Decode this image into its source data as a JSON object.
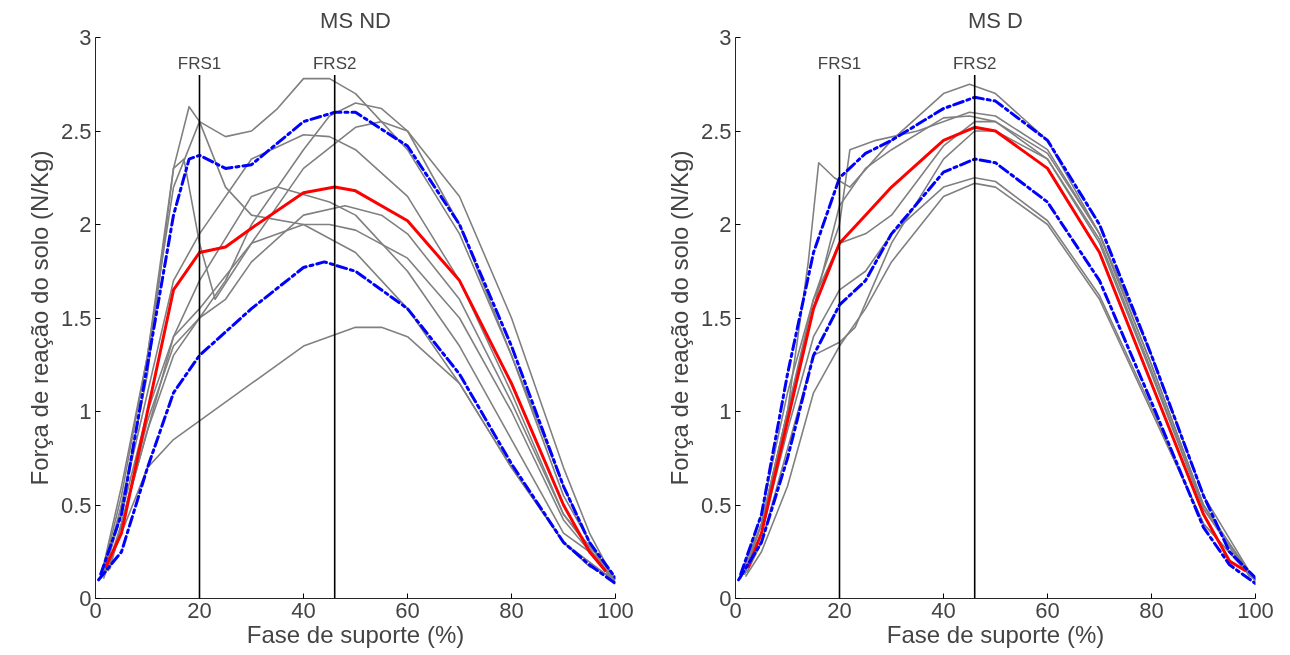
{
  "chart_data": [
    {
      "type": "line",
      "title": "MS ND",
      "xlabel": "Fase de suporte (%)",
      "ylabel": "Força de reação do solo (N/Kg)",
      "xlim": [
        0,
        100
      ],
      "ylim": [
        0,
        3
      ],
      "xticks": [
        0,
        20,
        40,
        60,
        80,
        100
      ],
      "yticks": [
        0,
        0.5,
        1,
        1.5,
        2,
        2.5,
        3
      ],
      "grid": false,
      "ref_lines": [
        {
          "axis": "x",
          "value": 20,
          "label": "FRS1",
          "color": "#000000"
        },
        {
          "axis": "x",
          "value": 46,
          "label": "FRS2",
          "color": "#000000"
        }
      ],
      "series": [
        {
          "color": "#808080",
          "x": [
            1.5,
            5,
            10,
            15,
            18,
            20,
            25,
            30,
            35,
            40,
            45,
            50,
            60,
            70,
            80,
            90,
            95,
            99.5
          ],
          "values": [
            0.13,
            0.5,
            1.2,
            2.3,
            2.63,
            2.55,
            2.47,
            2.5,
            2.62,
            2.78,
            2.78,
            2.7,
            2.4,
            1.95,
            1.3,
            0.6,
            0.3,
            0.11
          ]
        },
        {
          "color": "#808080",
          "x": [
            1,
            5,
            10,
            15,
            20,
            25,
            30,
            40,
            50,
            60,
            70,
            80,
            90,
            100
          ],
          "values": [
            0.11,
            0.6,
            1.3,
            2.2,
            2.55,
            2.2,
            2.05,
            2.0,
            1.85,
            1.55,
            1.15,
            0.7,
            0.3,
            0.09
          ]
        },
        {
          "color": "#808080",
          "x": [
            2,
            5,
            10,
            15,
            20,
            30,
            40,
            50,
            55,
            60,
            70,
            80,
            90,
            95,
            99
          ],
          "values": [
            0.14,
            0.35,
            0.7,
            0.85,
            0.95,
            1.15,
            1.35,
            1.45,
            1.45,
            1.4,
            1.15,
            0.7,
            0.3,
            0.17,
            0.12
          ]
        },
        {
          "color": "#808080",
          "x": [
            1.2,
            5,
            10,
            15,
            17,
            20,
            23,
            30,
            40,
            50,
            55,
            60,
            70,
            80,
            90,
            95,
            99.8
          ],
          "values": [
            0.12,
            0.55,
            1.3,
            2.3,
            2.35,
            1.9,
            1.6,
            1.9,
            2.3,
            2.52,
            2.55,
            2.5,
            2.15,
            1.5,
            0.7,
            0.35,
            0.1
          ]
        },
        {
          "color": "#808080",
          "x": [
            1.8,
            5,
            10,
            15,
            20,
            30,
            40,
            45,
            50,
            60,
            70,
            80,
            90,
            99.3
          ],
          "values": [
            0.13,
            0.5,
            1.1,
            1.7,
            1.95,
            2.35,
            2.48,
            2.47,
            2.4,
            2.15,
            1.7,
            1.1,
            0.45,
            0.11
          ]
        },
        {
          "color": "#808080",
          "x": [
            1.6,
            5,
            10,
            15,
            20,
            30,
            35,
            45,
            50,
            60,
            70,
            80,
            90,
            97
          ],
          "values": [
            0.11,
            0.4,
            0.9,
            1.4,
            1.7,
            2.15,
            2.2,
            2.12,
            2.05,
            1.75,
            1.35,
            0.85,
            0.35,
            0.21
          ]
        },
        {
          "color": "#808080",
          "x": [
            2.8,
            5,
            10,
            15,
            20,
            25,
            30,
            40,
            48,
            55,
            60,
            70,
            80,
            90,
            99.7
          ],
          "values": [
            0.16,
            0.4,
            0.95,
            1.35,
            1.5,
            1.6,
            1.8,
            2.05,
            2.1,
            2.05,
            1.95,
            1.6,
            1.05,
            0.45,
            0.12
          ]
        },
        {
          "color": "#808080",
          "x": [
            1.4,
            5,
            10,
            15,
            20,
            30,
            40,
            45,
            50,
            60,
            70,
            80,
            90,
            99.6
          ],
          "values": [
            0.12,
            0.45,
            1.0,
            1.4,
            1.55,
            1.9,
            2.0,
            2.0,
            1.97,
            1.82,
            1.5,
            1.0,
            0.42,
            0.1
          ]
        },
        {
          "color": "#808080",
          "x": [
            2.5,
            5,
            10,
            15,
            20,
            25,
            30,
            40,
            45,
            50,
            55,
            60,
            70,
            80,
            90,
            98.5
          ],
          "values": [
            0.15,
            0.4,
            0.9,
            1.3,
            1.5,
            1.7,
            2.0,
            2.4,
            2.58,
            2.65,
            2.62,
            2.5,
            2.0,
            1.3,
            0.55,
            0.13
          ]
        },
        {
          "color": "#ff0000",
          "x": [
            2,
            5,
            10,
            15,
            20,
            25,
            30,
            40,
            46,
            50,
            60,
            70,
            80,
            90,
            95,
            98
          ],
          "values": [
            0.17,
            0.35,
            1.0,
            1.65,
            1.85,
            1.88,
            1.98,
            2.17,
            2.2,
            2.18,
            2.02,
            1.7,
            1.15,
            0.5,
            0.25,
            0.15
          ]
        },
        {
          "color": "#0000ff",
          "line_style": "dashed",
          "x": [
            1,
            5,
            10,
            15,
            18,
            20,
            25,
            30,
            40,
            46,
            50,
            60,
            70,
            80,
            90,
            95,
            100
          ],
          "values": [
            0.13,
            0.45,
            1.25,
            2.05,
            2.35,
            2.37,
            2.3,
            2.32,
            2.55,
            2.6,
            2.6,
            2.42,
            2.0,
            1.35,
            0.6,
            0.3,
            0.11
          ]
        },
        {
          "color": "#0000ff",
          "line_style": "dashed",
          "x": [
            0.6,
            5,
            10,
            15,
            20,
            30,
            40,
            44,
            50,
            60,
            70,
            80,
            90,
            95,
            100
          ],
          "values": [
            0.1,
            0.25,
            0.7,
            1.1,
            1.3,
            1.55,
            1.77,
            1.8,
            1.75,
            1.55,
            1.2,
            0.72,
            0.3,
            0.18,
            0.08
          ]
        }
      ]
    },
    {
      "type": "line",
      "title": "MS D",
      "xlabel": "Fase de suporte (%)",
      "ylabel": "Força de reação do solo (N/Kg)",
      "xlim": [
        0,
        100
      ],
      "ylim": [
        0,
        3
      ],
      "xticks": [
        0,
        20,
        40,
        60,
        80,
        100
      ],
      "yticks": [
        0,
        0.5,
        1,
        1.5,
        2,
        2.5,
        3
      ],
      "grid": false,
      "ref_lines": [
        {
          "axis": "x",
          "value": 20,
          "label": "FRS1",
          "color": "#000000"
        },
        {
          "axis": "x",
          "value": 46,
          "label": "FRS2",
          "color": "#000000"
        }
      ],
      "series": [
        {
          "color": "#808080",
          "x": [
            1.5,
            5,
            10,
            14,
            16,
            19,
            22,
            30,
            40,
            45,
            50,
            60,
            70,
            80,
            90,
            99.5
          ],
          "values": [
            0.13,
            0.4,
            1.0,
            1.8,
            2.33,
            2.25,
            2.2,
            2.45,
            2.7,
            2.75,
            2.7,
            2.45,
            1.95,
            1.25,
            0.5,
            0.11
          ]
        },
        {
          "color": "#808080",
          "x": [
            1,
            5,
            10,
            15,
            20,
            22,
            27,
            35,
            45,
            50,
            60,
            70,
            80,
            90,
            100
          ],
          "values": [
            0.11,
            0.45,
            1.1,
            1.6,
            2.0,
            2.4,
            2.45,
            2.5,
            2.6,
            2.58,
            2.4,
            1.95,
            1.3,
            0.55,
            0.09
          ]
        },
        {
          "color": "#808080",
          "x": [
            2,
            5,
            10,
            15,
            20,
            25,
            30,
            40,
            46,
            50,
            60,
            70,
            80,
            90,
            99
          ],
          "values": [
            0.12,
            0.25,
            0.6,
            1.1,
            1.35,
            1.55,
            1.8,
            2.15,
            2.22,
            2.2,
            2.0,
            1.6,
            1.0,
            0.4,
            0.12
          ]
        },
        {
          "color": "#808080",
          "x": [
            1.2,
            5,
            10,
            15,
            20,
            25,
            30,
            40,
            46,
            50,
            60,
            70,
            80,
            90,
            99.8
          ],
          "values": [
            0.12,
            0.35,
            0.9,
            1.4,
            1.65,
            1.75,
            1.95,
            2.2,
            2.25,
            2.23,
            2.02,
            1.62,
            1.02,
            0.4,
            0.1
          ]
        },
        {
          "color": "#808080",
          "x": [
            1.8,
            5,
            10,
            15,
            20,
            25,
            30,
            40,
            46,
            50,
            60,
            70,
            80,
            90,
            99.3
          ],
          "values": [
            0.13,
            0.4,
            1.0,
            1.6,
            1.9,
            1.95,
            2.05,
            2.42,
            2.55,
            2.55,
            2.38,
            1.95,
            1.25,
            0.5,
            0.11
          ]
        },
        {
          "color": "#808080",
          "x": [
            2.2,
            5,
            10,
            15,
            20,
            23,
            30,
            40,
            46,
            50,
            60,
            70,
            80,
            90,
            98.8
          ],
          "values": [
            0.14,
            0.3,
            0.8,
            1.3,
            1.37,
            1.45,
            1.9,
            2.35,
            2.5,
            2.5,
            2.35,
            1.92,
            1.22,
            0.48,
            0.12
          ]
        },
        {
          "color": "#808080",
          "x": [
            0.8,
            5,
            10,
            15,
            20,
            25,
            30,
            40,
            45,
            50,
            60,
            70,
            80,
            90,
            100
          ],
          "values": [
            0.11,
            0.4,
            1.0,
            1.55,
            2.1,
            2.3,
            2.4,
            2.57,
            2.58,
            2.55,
            2.35,
            1.9,
            1.2,
            0.48,
            0.1
          ]
        },
        {
          "color": "#ff0000",
          "x": [
            2.5,
            5,
            10,
            15,
            20,
            25,
            30,
            40,
            46,
            50,
            60,
            70,
            80,
            90,
            95,
            98
          ],
          "values": [
            0.17,
            0.35,
            0.95,
            1.55,
            1.9,
            2.05,
            2.2,
            2.45,
            2.52,
            2.5,
            2.3,
            1.85,
            1.15,
            0.45,
            0.2,
            0.15
          ]
        },
        {
          "color": "#0000ff",
          "line_style": "dashed",
          "x": [
            1,
            5,
            10,
            15,
            20,
            25,
            30,
            40,
            46,
            50,
            60,
            70,
            80,
            90,
            95,
            100
          ],
          "values": [
            0.13,
            0.45,
            1.2,
            1.85,
            2.25,
            2.38,
            2.45,
            2.62,
            2.68,
            2.66,
            2.45,
            2.0,
            1.3,
            0.55,
            0.25,
            0.11
          ]
        },
        {
          "color": "#0000ff",
          "line_style": "dashed",
          "x": [
            0.6,
            5,
            10,
            15,
            20,
            25,
            30,
            40,
            46,
            50,
            60,
            70,
            80,
            90,
            95,
            100
          ],
          "values": [
            0.1,
            0.3,
            0.75,
            1.3,
            1.57,
            1.7,
            1.95,
            2.28,
            2.35,
            2.33,
            2.12,
            1.7,
            1.05,
            0.38,
            0.18,
            0.08
          ]
        }
      ]
    }
  ]
}
